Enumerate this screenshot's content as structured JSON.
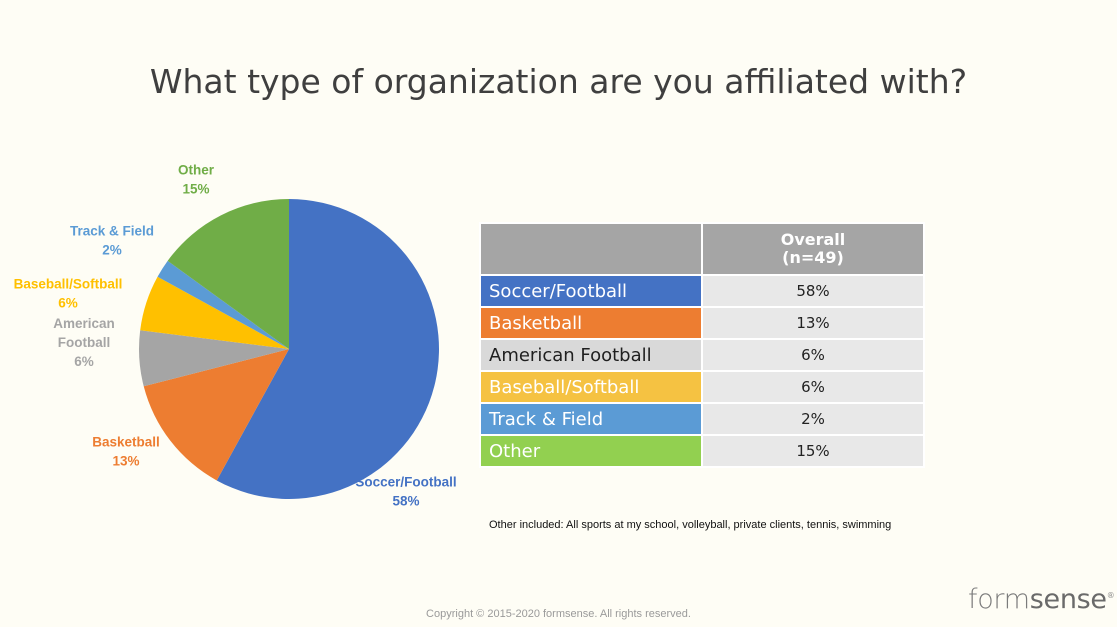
{
  "title": "What type of organization are you affiliated with?",
  "chart_data": {
    "type": "pie",
    "slices": [
      {
        "label": "Soccer/Football",
        "value": 58,
        "value_label": "58%",
        "color": "#4472C4"
      },
      {
        "label": "Basketball",
        "value": 13,
        "value_label": "13%",
        "color": "#ED7D31"
      },
      {
        "label": "American Football",
        "label_lines": [
          "American",
          "Football"
        ],
        "value": 6,
        "value_label": "6%",
        "color": "#A5A5A5"
      },
      {
        "label": "Baseball/Softball",
        "value": 6,
        "value_label": "6%",
        "color": "#FFC000"
      },
      {
        "label": "Track & Field",
        "value": 2,
        "value_label": "2%",
        "color": "#5B9BD5"
      },
      {
        "label": "Other",
        "value": 15,
        "value_label": "15%",
        "color": "#70AD47"
      }
    ]
  },
  "table": {
    "column_header_line1": "Overall",
    "column_header_line2": "(n=49)",
    "rows": [
      {
        "label": "Soccer/Football",
        "value": "58%",
        "color": "#4472C4"
      },
      {
        "label": "Basketball",
        "value": "13%",
        "color": "#ED7D31"
      },
      {
        "label": "American Football",
        "value": "6%",
        "color": "#D9D9D9"
      },
      {
        "label": "Baseball/Softball",
        "value": "6%",
        "color": "#F5C242"
      },
      {
        "label": "Track & Field",
        "value": "2%",
        "color": "#5B9BD5"
      },
      {
        "label": "Other",
        "value": "15%",
        "color": "#92D050"
      }
    ]
  },
  "note": "Other included: All sports at my school, volleyball, private clients, tennis, swimming",
  "footer": {
    "copyright": "Copyright © 2015-2020 formsense. All rights reserved.",
    "logo_part1": "form",
    "logo_part2": "sense",
    "logo_mark": "®"
  }
}
